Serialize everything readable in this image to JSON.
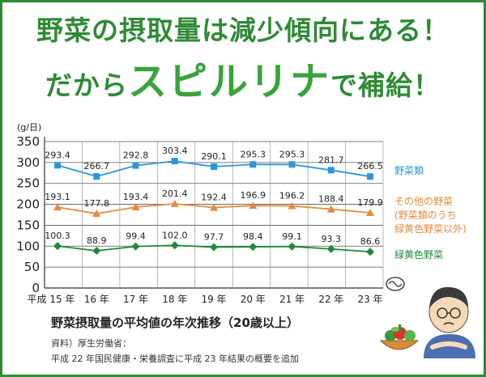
{
  "headline": {
    "line1": "野菜の摂取量は減少傾向にある！",
    "line2_prefix": "だから",
    "line2_emphasis": "スピルリナ",
    "line2_suffix": "で補給！"
  },
  "colors": {
    "frame": "#2f8a35",
    "headline": "#2f8a35",
    "series_blue": "#2a97d8",
    "series_orange": "#e58a3d",
    "series_green": "#1e8a38"
  },
  "chart_data": {
    "type": "line",
    "unit_label": "(g/日)",
    "categories": [
      "平成 15 年",
      "16 年",
      "17 年",
      "18 年",
      "19 年",
      "20 年",
      "21 年",
      "22 年",
      "23 年"
    ],
    "ylim": [
      0,
      350
    ],
    "yticks": [
      0,
      50,
      100,
      150,
      200,
      250,
      300,
      350
    ],
    "grid": true,
    "series": [
      {
        "name": "野菜類",
        "color": "#2a97d8",
        "marker": "square",
        "values": [
          293.4,
          266.7,
          292.8,
          303.4,
          290.1,
          295.3,
          295.3,
          281.7,
          266.5
        ],
        "labels": [
          "293.4",
          "266.7",
          "292.8",
          "303.4",
          "290.1",
          "295.3",
          "295.3",
          "281.7",
          "266.5"
        ]
      },
      {
        "name": "その他の野菜\n(野菜類のうち\n緑黄色野菜以外)",
        "color": "#e58a3d",
        "marker": "triangle",
        "values": [
          193.1,
          177.8,
          193.4,
          201.4,
          192.4,
          196.9,
          196.2,
          188.4,
          179.9
        ],
        "labels": [
          "193.1",
          "177.8",
          "193.4",
          "201.4",
          "192.4",
          "196.9",
          "196.2",
          "188.4",
          "179.9"
        ]
      },
      {
        "name": "緑黄色野菜",
        "color": "#1e8a38",
        "marker": "diamond",
        "values": [
          100.3,
          88.9,
          99.4,
          102.0,
          97.7,
          98.4,
          99.1,
          93.3,
          86.6
        ],
        "labels": [
          "100.3",
          "88.9",
          "99.4",
          "102.0",
          "97.7",
          "98.4",
          "99.1",
          "93.3",
          "86.6"
        ]
      }
    ]
  },
  "caption": {
    "title": "野菜摂取量の平均値の年次推移（20歳以上）",
    "source": "資料）厚生労働省：",
    "note": "平成 22 年国民健康・栄養調査に平成 23 年結果の概要を追加"
  }
}
